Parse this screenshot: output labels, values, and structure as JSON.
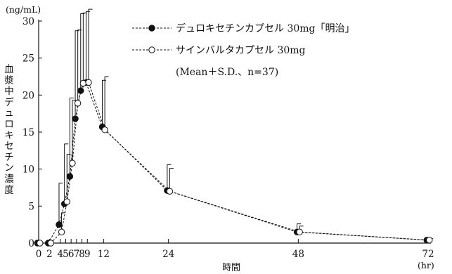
{
  "chart_data": {
    "type": "line",
    "yunit": "(ng/mL)",
    "xunit": "(hr)",
    "xlabel": "時間",
    "ylabel": "血漿中デュロキセチン濃度",
    "xlim": [
      0,
      72
    ],
    "ylim": [
      0,
      30
    ],
    "x_ticks": [
      0,
      2,
      4,
      5,
      6,
      7,
      8,
      9,
      12,
      24,
      48,
      72
    ],
    "x_tick_labels": [
      "0",
      "2",
      "4",
      "5",
      "6",
      "7",
      "8",
      "9",
      "12",
      "24",
      "48",
      "72"
    ],
    "y_ticks": [
      0,
      5,
      10,
      15,
      20,
      25,
      30
    ],
    "y_tick_labels": [
      "0",
      "5",
      "10",
      "15",
      "20",
      "25",
      "30"
    ],
    "legend_note": "(Mean＋S.D.、n=37)",
    "series": [
      {
        "name": "デュロキセチンカプセル 30mg「明治」",
        "marker": "filled-circle",
        "color": "#111111",
        "x": [
          0,
          2,
          4,
          5,
          6,
          7,
          8,
          9,
          12,
          24,
          48,
          72
        ],
        "y": [
          0,
          0,
          2.5,
          5.3,
          9.0,
          16.8,
          20.6,
          21.7,
          15.7,
          7.1,
          1.5,
          0.4
        ],
        "sd_upper": [
          0,
          0,
          8.1,
          13.4,
          19.6,
          28.7,
          31.0,
          31.3,
          22.0,
          10.6,
          2.6,
          0.7
        ]
      },
      {
        "name": "サインバルタカプセル 30mg",
        "marker": "open-circle",
        "color": "#111111",
        "x": [
          0,
          2,
          4,
          5,
          6,
          7,
          8,
          9,
          12,
          24,
          48,
          72
        ],
        "y": [
          0,
          0,
          1.5,
          5.6,
          10.8,
          18.9,
          21.6,
          21.7,
          15.3,
          7.0,
          1.5,
          0.4
        ],
        "sd_upper": [
          0,
          0,
          4.1,
          12.0,
          19.3,
          28.8,
          31.1,
          31.6,
          22.5,
          10.1,
          2.3,
          0.6
        ]
      }
    ]
  }
}
